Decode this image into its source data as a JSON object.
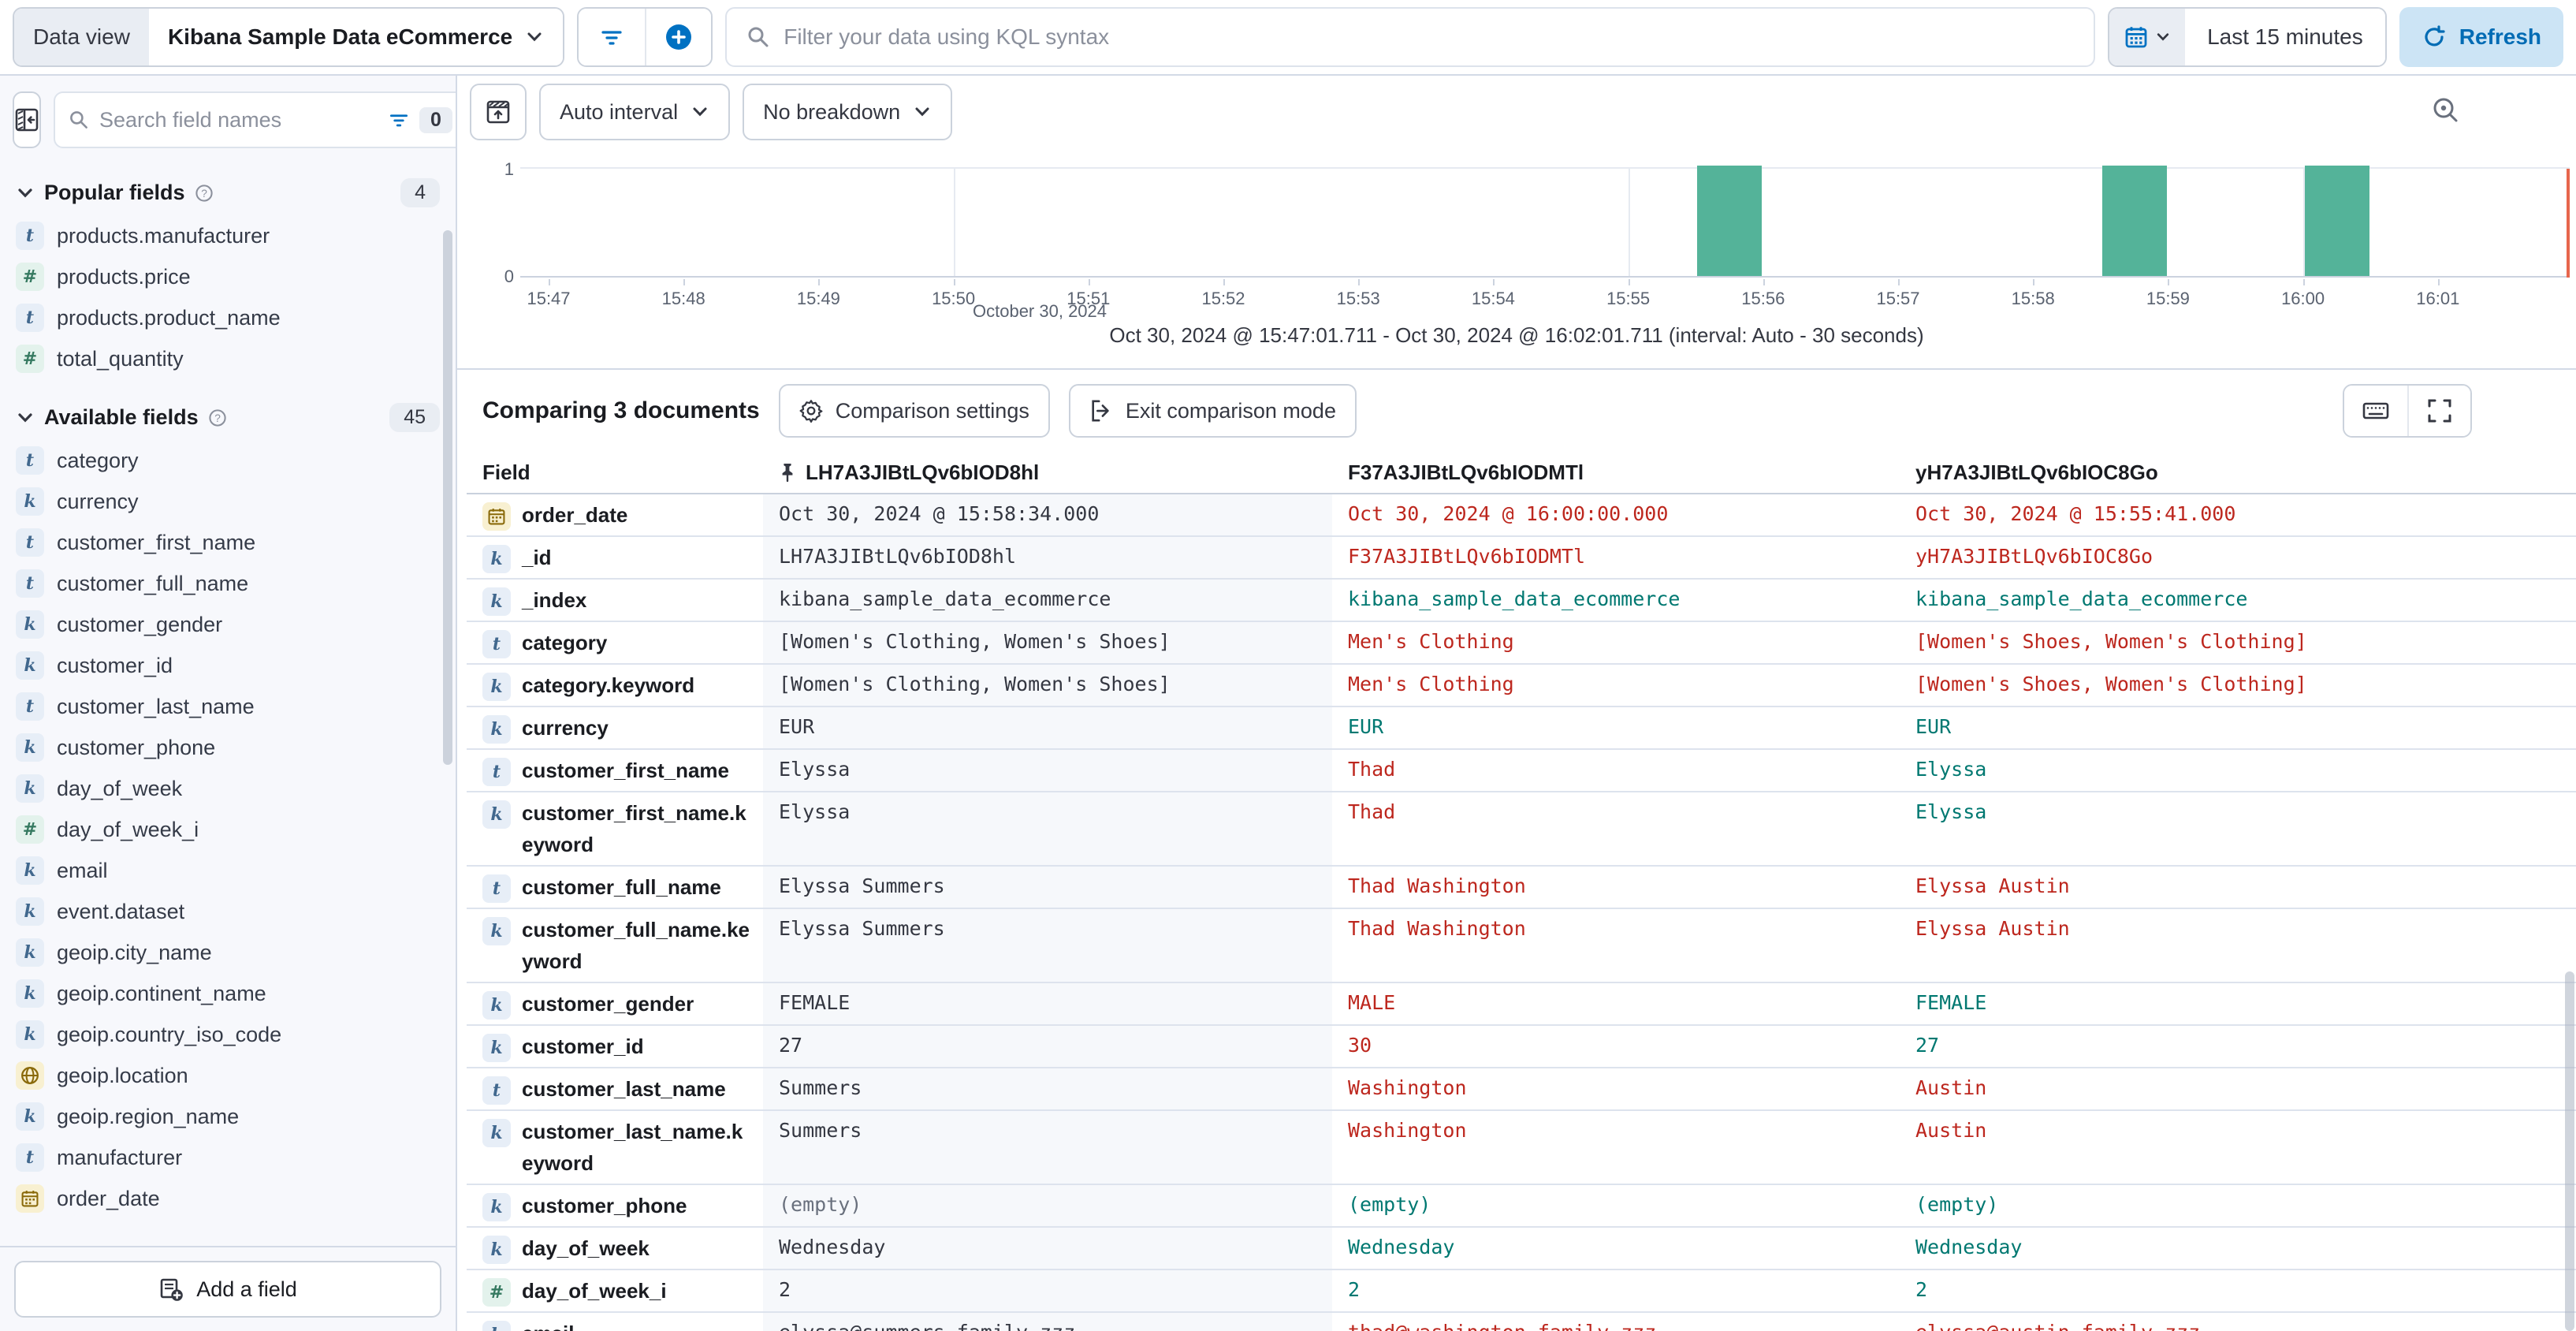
{
  "top_bar": {
    "data_view_label": "Data view",
    "data_view_value": "Kibana Sample Data eCommerce",
    "kql_placeholder": "Filter your data using KQL syntax",
    "time_range": "Last 15 minutes",
    "refresh_label": "Refresh"
  },
  "icons": {
    "top_bar": [
      "filter-icon",
      "add-filter-plus-icon",
      "search-icon",
      "calendar-icon",
      "chevron-down-icon",
      "refresh-icon"
    ],
    "sidebar": [
      "collapse-sidebar-icon",
      "search-icon",
      "field-filter-icon",
      "question-circle-icon",
      "field-type-badges"
    ],
    "chart": [
      "hide-chart-icon",
      "inspect-icon"
    ],
    "comparison": [
      "gear-icon",
      "exit-icon",
      "keyboard-icon",
      "fullscreen-icon",
      "pin-icon"
    ]
  },
  "sidebar": {
    "search_placeholder": "Search field names",
    "filter_count": "0",
    "popular": {
      "title": "Popular fields",
      "count": "4",
      "items": [
        {
          "name": "products.manufacturer",
          "type": "t"
        },
        {
          "name": "products.price",
          "type": "#"
        },
        {
          "name": "products.product_name",
          "type": "t"
        },
        {
          "name": "total_quantity",
          "type": "#"
        }
      ]
    },
    "available": {
      "title": "Available fields",
      "count": "45",
      "items": [
        {
          "name": "category",
          "type": "t"
        },
        {
          "name": "currency",
          "type": "k"
        },
        {
          "name": "customer_first_name",
          "type": "t"
        },
        {
          "name": "customer_full_name",
          "type": "t"
        },
        {
          "name": "customer_gender",
          "type": "k"
        },
        {
          "name": "customer_id",
          "type": "k"
        },
        {
          "name": "customer_last_name",
          "type": "t"
        },
        {
          "name": "customer_phone",
          "type": "k"
        },
        {
          "name": "day_of_week",
          "type": "k"
        },
        {
          "name": "day_of_week_i",
          "type": "#"
        },
        {
          "name": "email",
          "type": "k"
        },
        {
          "name": "event.dataset",
          "type": "k"
        },
        {
          "name": "geoip.city_name",
          "type": "k"
        },
        {
          "name": "geoip.continent_name",
          "type": "k"
        },
        {
          "name": "geoip.country_iso_code",
          "type": "k"
        },
        {
          "name": "geoip.location",
          "type": "geo"
        },
        {
          "name": "geoip.region_name",
          "type": "k"
        },
        {
          "name": "manufacturer",
          "type": "t"
        },
        {
          "name": "order_date",
          "type": "date"
        }
      ]
    },
    "add_field_label": "Add a field"
  },
  "chart": {
    "interval_label": "Auto interval",
    "breakdown_label": "No breakdown",
    "range_label": "Oct 30, 2024 @ 15:47:01.711 - Oct 30, 2024 @ 16:02:01.711 (interval: Auto - 30 seconds)"
  },
  "chart_data": {
    "type": "bar",
    "x_tick_labels": [
      "15:47",
      "15:48",
      "15:49",
      "15:50",
      "15:51",
      "15:52",
      "15:53",
      "15:54",
      "15:55",
      "15:56",
      "15:57",
      "15:58",
      "15:59",
      "16:00",
      "16:01"
    ],
    "x_axis_date_label": "October 30, 2024",
    "gridline_ticks": [
      "15:50",
      "15:55",
      "16:00"
    ],
    "y_ticks": [
      "1",
      "0"
    ],
    "ylim": [
      0,
      1
    ],
    "interval_seconds": 30,
    "time_range_start": "15:47:00",
    "buckets": [
      {
        "time": "15:55:30",
        "count": 1
      },
      {
        "time": "15:58:30",
        "count": 1
      },
      {
        "time": "16:00:00",
        "count": 1
      }
    ],
    "bar_color": "#54B399",
    "end_marker_color": "#E7664C"
  },
  "comparison": {
    "title": "Comparing 3 documents",
    "settings_label": "Comparison settings",
    "exit_label": "Exit comparison mode",
    "table": {
      "field_header": "Field",
      "doc_ids": [
        "LH7A3JIBtLQv6bIOD8hl",
        "F37A3JIBtLQv6bIODMTl",
        "yH7A3JIBtLQv6bIOC8Go"
      ],
      "rows": [
        {
          "field": "order_date",
          "type": "date",
          "base": "Oct 30, 2024 @ 15:58:34.000",
          "docs": [
            {
              "v": "Oct 30, 2024 @ 16:00:00.000",
              "s": "diff"
            },
            {
              "v": "Oct 30, 2024 @ 15:55:41.000",
              "s": "diff"
            }
          ]
        },
        {
          "field": "_id",
          "type": "k",
          "base": "LH7A3JIBtLQv6bIOD8hl",
          "docs": [
            {
              "v": "F37A3JIBtLQv6bIODMTl",
              "s": "diff"
            },
            {
              "v": "yH7A3JIBtLQv6bIOC8Go",
              "s": "diff"
            }
          ]
        },
        {
          "field": "_index",
          "type": "k",
          "base": "kibana_sample_data_ecommerce",
          "docs": [
            {
              "v": "kibana_sample_data_ecommerce",
              "s": "match"
            },
            {
              "v": "kibana_sample_data_ecommerce",
              "s": "match"
            }
          ]
        },
        {
          "field": "category",
          "type": "t",
          "base": "[Women's Clothing, Women's Shoes]",
          "docs": [
            {
              "v": "Men's Clothing",
              "s": "diff"
            },
            {
              "v": "[Women's Shoes, Women's Clothing]",
              "s": "diff"
            }
          ]
        },
        {
          "field": "category.keyword",
          "type": "k",
          "base": "[Women's Clothing, Women's Shoes]",
          "docs": [
            {
              "v": "Men's Clothing",
              "s": "diff"
            },
            {
              "v": "[Women's Shoes, Women's Clothing]",
              "s": "diff"
            }
          ]
        },
        {
          "field": "currency",
          "type": "k",
          "base": "EUR",
          "docs": [
            {
              "v": "EUR",
              "s": "match"
            },
            {
              "v": "EUR",
              "s": "match"
            }
          ]
        },
        {
          "field": "customer_first_name",
          "type": "t",
          "base": "Elyssa",
          "docs": [
            {
              "v": "Thad",
              "s": "diff"
            },
            {
              "v": "Elyssa",
              "s": "match"
            }
          ]
        },
        {
          "field": "customer_first_name.keyword",
          "type": "k",
          "base": "Elyssa",
          "docs": [
            {
              "v": "Thad",
              "s": "diff"
            },
            {
              "v": "Elyssa",
              "s": "match"
            }
          ]
        },
        {
          "field": "customer_full_name",
          "type": "t",
          "base": "Elyssa Summers",
          "docs": [
            {
              "v": "Thad Washington",
              "s": "diff"
            },
            {
              "v": "Elyssa Austin",
              "s": "diff"
            }
          ]
        },
        {
          "field": "customer_full_name.keyword",
          "type": "k",
          "base": "Elyssa Summers",
          "docs": [
            {
              "v": "Thad Washington",
              "s": "diff"
            },
            {
              "v": "Elyssa Austin",
              "s": "diff"
            }
          ]
        },
        {
          "field": "customer_gender",
          "type": "k",
          "base": "FEMALE",
          "docs": [
            {
              "v": "MALE",
              "s": "diff"
            },
            {
              "v": "FEMALE",
              "s": "match"
            }
          ]
        },
        {
          "field": "customer_id",
          "type": "k",
          "base": "27",
          "docs": [
            {
              "v": "30",
              "s": "diff"
            },
            {
              "v": "27",
              "s": "match"
            }
          ]
        },
        {
          "field": "customer_last_name",
          "type": "t",
          "base": "Summers",
          "docs": [
            {
              "v": "Washington",
              "s": "diff"
            },
            {
              "v": "Austin",
              "s": "diff"
            }
          ]
        },
        {
          "field": "customer_last_name.keyword",
          "type": "k",
          "base": "Summers",
          "docs": [
            {
              "v": "Washington",
              "s": "diff"
            },
            {
              "v": "Austin",
              "s": "diff"
            }
          ]
        },
        {
          "field": "customer_phone",
          "type": "k",
          "base": "(empty)",
          "base_style": "muted",
          "docs": [
            {
              "v": "(empty)",
              "s": "match"
            },
            {
              "v": "(empty)",
              "s": "match"
            }
          ]
        },
        {
          "field": "day_of_week",
          "type": "k",
          "base": "Wednesday",
          "docs": [
            {
              "v": "Wednesday",
              "s": "match"
            },
            {
              "v": "Wednesday",
              "s": "match"
            }
          ]
        },
        {
          "field": "day_of_week_i",
          "type": "#",
          "base": "2",
          "docs": [
            {
              "v": "2",
              "s": "match"
            },
            {
              "v": "2",
              "s": "match"
            }
          ]
        },
        {
          "field": "email",
          "type": "k",
          "base": "elyssa@summers-family.zzz",
          "docs": [
            {
              "v": "thad@washington-family.zzz",
              "s": "diff"
            },
            {
              "v": "elyssa@austin-family.zzz",
              "s": "diff"
            }
          ]
        }
      ]
    }
  }
}
